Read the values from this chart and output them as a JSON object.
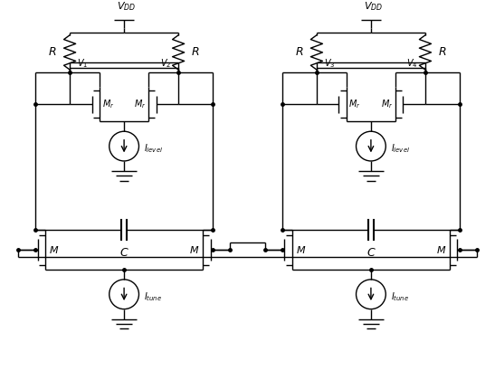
{
  "bg_color": "#ffffff",
  "line_color": "#000000",
  "line_width": 1.0,
  "font_size": 9,
  "fig_width": 5.47,
  "fig_height": 4.2,
  "dpi": 100
}
